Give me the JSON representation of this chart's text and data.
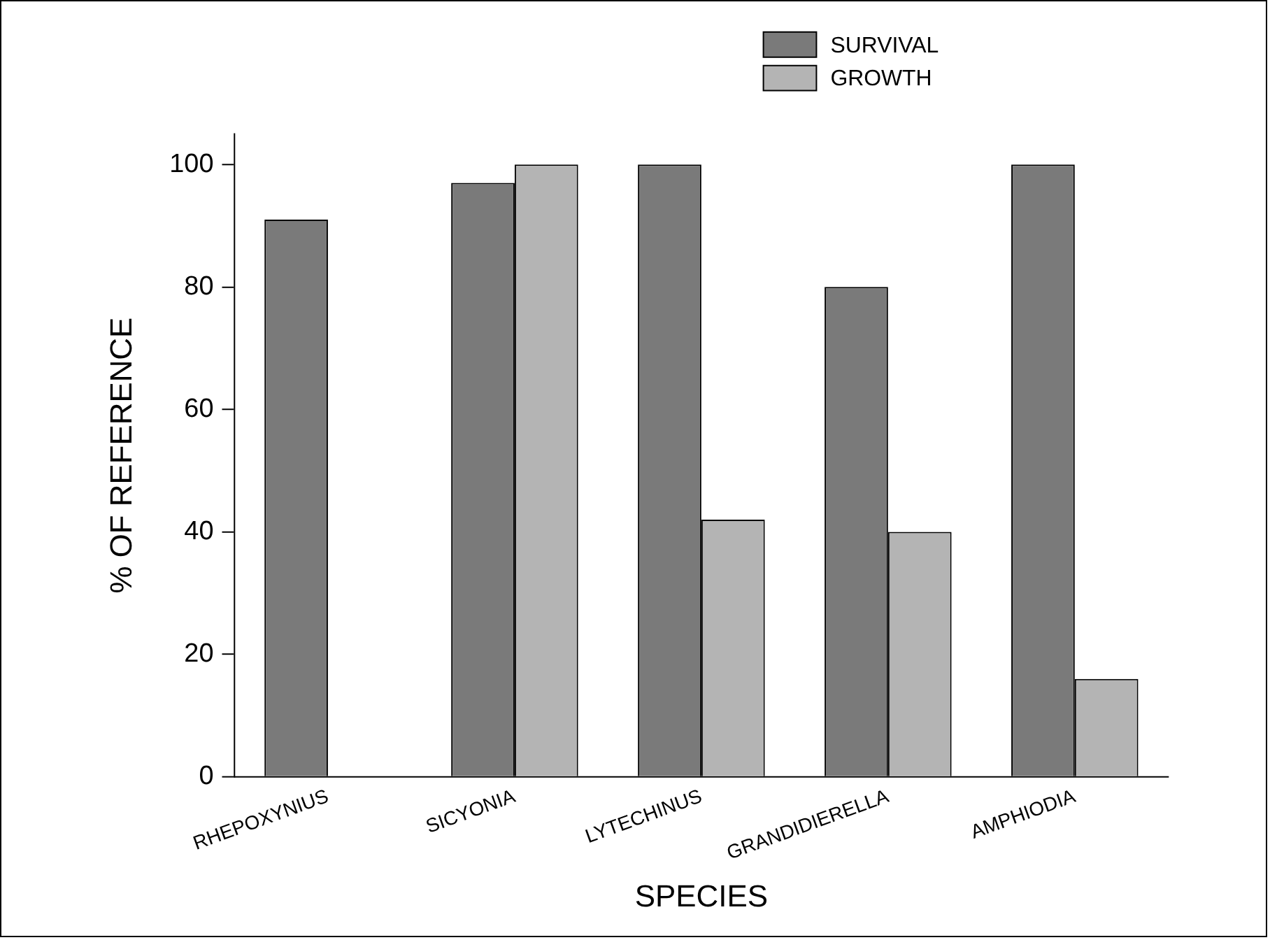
{
  "chart_data": {
    "type": "bar",
    "xlabel": "SPECIES",
    "ylabel": "% OF REFERENCE",
    "categories": [
      "RHEPOXYNIUS",
      "SICYONIA",
      "LYTECHINUS",
      "GRANDIDIERELLA",
      "AMPHIODIA"
    ],
    "series": [
      {
        "name": "SURVIVAL",
        "color": "#7a7a7a",
        "values": [
          91,
          97,
          100,
          80,
          100
        ]
      },
      {
        "name": "GROWTH",
        "color": "#b4b4b4",
        "values": [
          null,
          100,
          42,
          40,
          16
        ]
      }
    ],
    "ylim": [
      0,
      105
    ],
    "yticks": [
      0,
      20,
      40,
      60,
      80,
      100
    ],
    "grid": false,
    "legend": "top right"
  }
}
